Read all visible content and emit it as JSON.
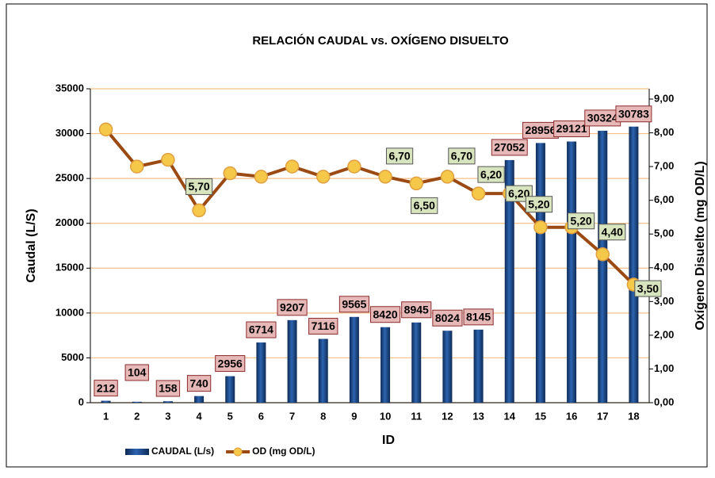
{
  "chart_data": {
    "type": "bar_line",
    "title": "RELACIÓN CAUDAL vs. OXÍGENO DISUELTO",
    "x_label": "ID",
    "y_label": "Caudal (L/S)",
    "y2_label": "Oxígeno Disuelto (mg OD/L)",
    "categories": [
      "1",
      "2",
      "3",
      "4",
      "5",
      "6",
      "7",
      "8",
      "9",
      "10",
      "11",
      "12",
      "13",
      "14",
      "15",
      "16",
      "17",
      "18"
    ],
    "series": [
      {
        "name": "CAUDAL (L/s)",
        "type": "bar",
        "color": "#1f4e8c",
        "values": [
          212,
          104,
          158,
          740,
          2956,
          6714,
          9207,
          7116,
          9565,
          8420,
          8945,
          8024,
          8145,
          27052,
          28956,
          29121,
          30324,
          30783
        ]
      },
      {
        "name": "OD (mg OD/L)",
        "type": "line",
        "axis": "y2",
        "color": "#9a4a12",
        "marker_color": "#f5c84a",
        "values": [
          8.1,
          7.0,
          7.2,
          5.7,
          6.8,
          6.7,
          7.0,
          6.7,
          7.0,
          6.7,
          6.5,
          6.7,
          6.2,
          6.2,
          5.2,
          5.2,
          4.4,
          3.5
        ],
        "value_labels": [
          null,
          null,
          null,
          "5,70",
          null,
          null,
          null,
          null,
          null,
          "6,70",
          "6,50",
          "6,70",
          "6,20",
          "6,20",
          "5,20",
          "5,20",
          "4,40",
          "3,50"
        ]
      }
    ],
    "ylim": [
      0,
      35000
    ],
    "yticks": [
      0,
      5000,
      10000,
      15000,
      20000,
      25000,
      30000,
      35000
    ],
    "y2lim": [
      0,
      9
    ],
    "y2ticks": [
      {
        "value": 0,
        "label": "0,00"
      },
      {
        "value": 1,
        "label": "1,00"
      },
      {
        "value": 2,
        "label": "2,00"
      },
      {
        "value": 3,
        "label": "3,00"
      },
      {
        "value": 4,
        "label": "4,00"
      },
      {
        "value": 5,
        "label": "5,00"
      },
      {
        "value": 6,
        "label": "6,00"
      },
      {
        "value": 7,
        "label": "7,00"
      },
      {
        "value": 8,
        "label": "8,00"
      },
      {
        "value": 9,
        "label": "9,00"
      }
    ],
    "grid": true,
    "legend": "bottom-left"
  }
}
